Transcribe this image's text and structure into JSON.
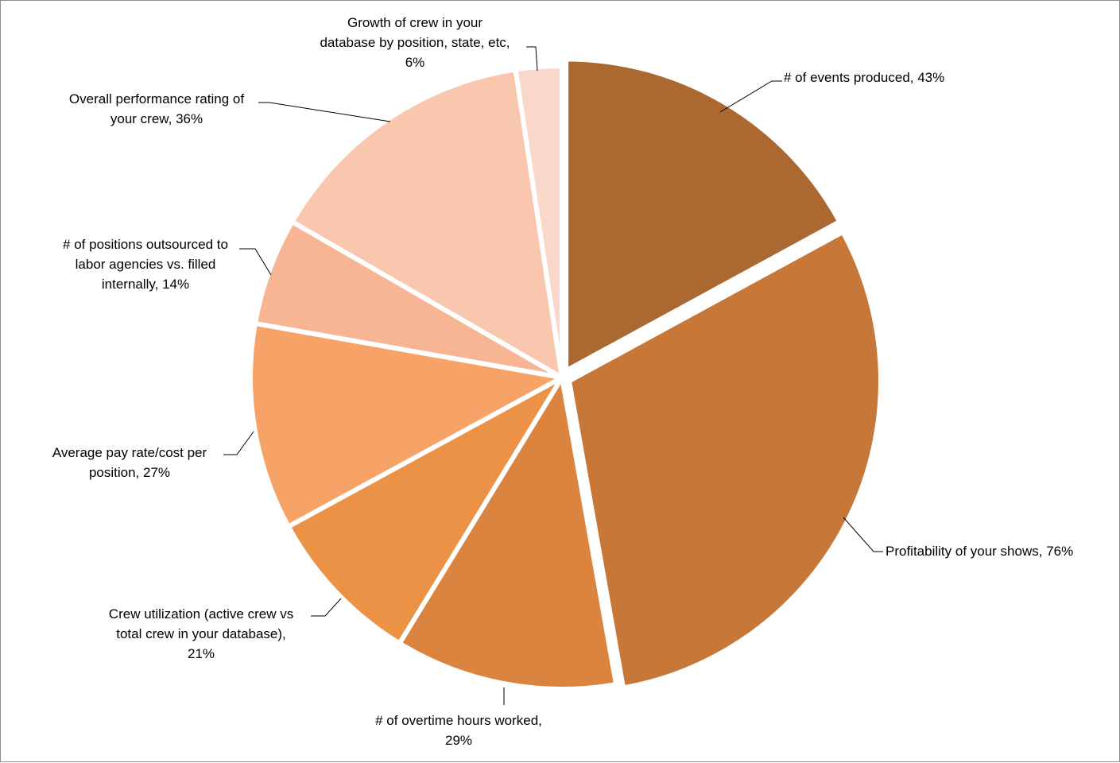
{
  "chart_data": {
    "type": "pie",
    "title": "",
    "legend": "none",
    "data_labels": "category name and percentage, outside with leader lines",
    "slices": [
      {
        "label": "# of events produced",
        "value": 43,
        "display": "# of events produced, 43%",
        "color": "#AB6830"
      },
      {
        "label": "Profitability of your shows",
        "value": 76,
        "display": "Profitability of your shows, 76%",
        "color": "#C77838"
      },
      {
        "label": "# of overtime hours worked",
        "value": 29,
        "display": "# of overtime hours worked,\n29%",
        "color": "#DB843F"
      },
      {
        "label": "Crew utilization (active crew vs total crew in your database)",
        "value": 21,
        "display": "Crew utilization (active crew vs\ntotal crew in your database),\n21%",
        "color": "#EC9246"
      },
      {
        "label": "Average pay rate/cost per position",
        "value": 27,
        "display": "Average pay rate/cost per\nposition, 27%",
        "color": "#F7A266"
      },
      {
        "label": "# of positions outsourced to labor agencies vs. filled internally",
        "value": 14,
        "display": "# of positions outsourced to\nlabor agencies vs. filled\ninternally, 14%",
        "color": "#F8B594"
      },
      {
        "label": "Overall performance rating of your crew",
        "value": 36,
        "display": "Overall performance rating of\nyour crew, 36%",
        "color": "#F9C7AE"
      },
      {
        "label": "Growth of crew in your database by position, state, etc",
        "value": 6,
        "display": "Growth of crew in your\ndatabase by position, state, etc,\n6%",
        "color": "#F9D7CA"
      }
    ]
  }
}
